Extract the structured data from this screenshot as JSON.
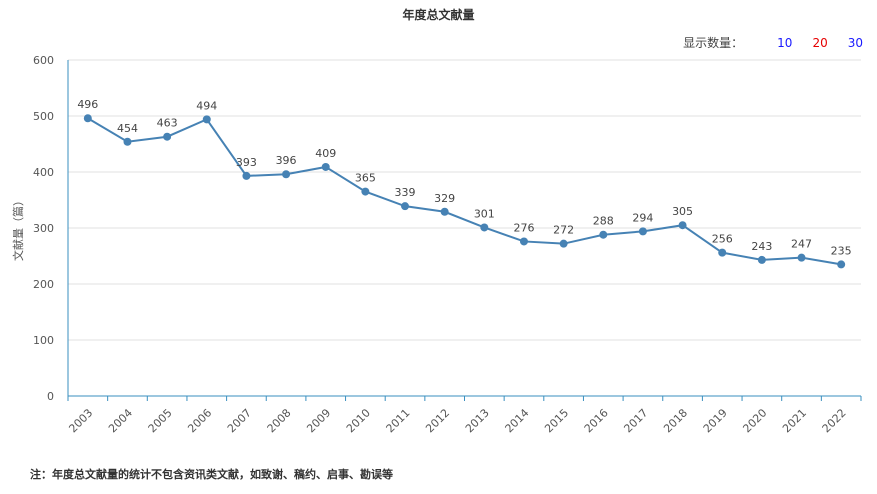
{
  "chart_title": "年度总文献量",
  "display_count": {
    "label": "显示数量：",
    "options": [
      {
        "value": "10",
        "color": "#1a1aff"
      },
      {
        "value": "20",
        "color": "#e60000"
      },
      {
        "value": "30",
        "color": "#1a1aff"
      }
    ]
  },
  "note": "注：年度总文献量的统计不包含资讯类文献，如致谢、稿约、启事、勘误等",
  "colors": {
    "line": "#4682b4",
    "axis": "#3a8fbf",
    "grid": "#e0e0e0"
  },
  "chart_data": {
    "type": "line",
    "title": "年度总文献量",
    "xlabel": "",
    "ylabel": "文献量（篇）",
    "ylim": [
      0,
      600
    ],
    "yticks": [
      0,
      100,
      200,
      300,
      400,
      500,
      600
    ],
    "grid": true,
    "categories": [
      "2003",
      "2004",
      "2005",
      "2006",
      "2007",
      "2008",
      "2009",
      "2010",
      "2011",
      "2012",
      "2013",
      "2014",
      "2015",
      "2016",
      "2017",
      "2018",
      "2019",
      "2020",
      "2021",
      "2022"
    ],
    "series": [
      {
        "values": [
          496,
          454,
          463,
          494,
          393,
          396,
          409,
          365,
          339,
          329,
          301,
          276,
          272,
          288,
          294,
          305,
          256,
          243,
          247,
          235
        ]
      }
    ]
  }
}
